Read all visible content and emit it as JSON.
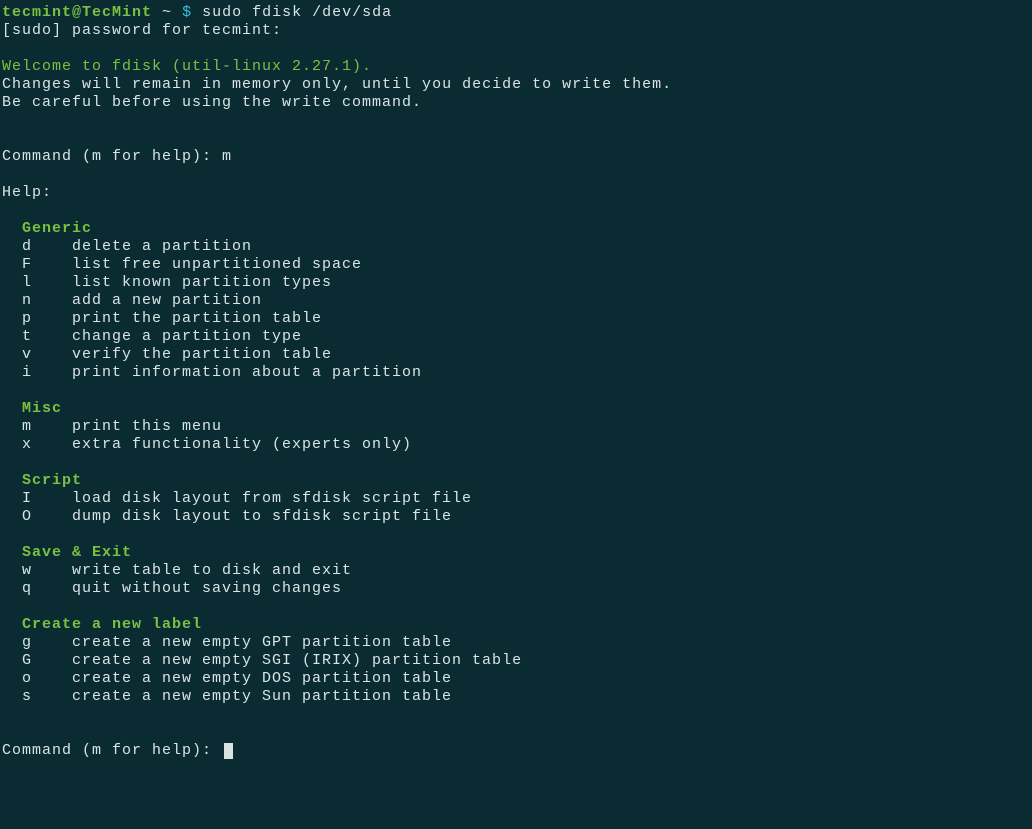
{
  "colors": {
    "background": "#0b2b33",
    "text": "#d8e4e4",
    "green": "#7ac142",
    "cyan": "#3bbfd8"
  },
  "prompt": {
    "user_host": "tecmint@TecMint",
    "tilde": "~",
    "dollar": "$",
    "command": "sudo fdisk /dev/sda"
  },
  "sudo_line": "[sudo] password for tecmint:",
  "welcome": "Welcome to fdisk (util-linux 2.27.1).",
  "notice1": "Changes will remain in memory only, until you decide to write them.",
  "notice2": "Be careful before using the write command.",
  "cmd_prompt1": "Command (m for help): m",
  "help_label": "Help:",
  "sections": {
    "generic": {
      "title": "Generic",
      "items": [
        {
          "key": "d",
          "desc": "delete a partition"
        },
        {
          "key": "F",
          "desc": "list free unpartitioned space"
        },
        {
          "key": "l",
          "desc": "list known partition types"
        },
        {
          "key": "n",
          "desc": "add a new partition"
        },
        {
          "key": "p",
          "desc": "print the partition table"
        },
        {
          "key": "t",
          "desc": "change a partition type"
        },
        {
          "key": "v",
          "desc": "verify the partition table"
        },
        {
          "key": "i",
          "desc": "print information about a partition"
        }
      ]
    },
    "misc": {
      "title": "Misc",
      "items": [
        {
          "key": "m",
          "desc": "print this menu"
        },
        {
          "key": "x",
          "desc": "extra functionality (experts only)"
        }
      ]
    },
    "script": {
      "title": "Script",
      "items": [
        {
          "key": "I",
          "desc": "load disk layout from sfdisk script file"
        },
        {
          "key": "O",
          "desc": "dump disk layout to sfdisk script file"
        }
      ]
    },
    "save_exit": {
      "title": "Save & Exit",
      "items": [
        {
          "key": "w",
          "desc": "write table to disk and exit"
        },
        {
          "key": "q",
          "desc": "quit without saving changes"
        }
      ]
    },
    "create_label": {
      "title": "Create a new label",
      "items": [
        {
          "key": "g",
          "desc": "create a new empty GPT partition table"
        },
        {
          "key": "G",
          "desc": "create a new empty SGI (IRIX) partition table"
        },
        {
          "key": "o",
          "desc": "create a new empty DOS partition table"
        },
        {
          "key": "s",
          "desc": "create a new empty Sun partition table"
        }
      ]
    }
  },
  "cmd_prompt2": "Command (m for help): "
}
